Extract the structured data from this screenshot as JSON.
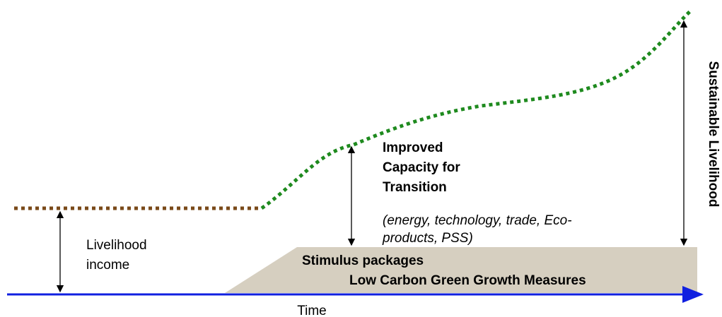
{
  "diagram": {
    "capacity_label": [
      "Improved",
      "Capacity for",
      "Transition"
    ],
    "capacity_note": [
      "(energy, technology, trade, Eco-",
      "products, PSS)"
    ],
    "income_label": [
      "Livelihood",
      "income"
    ],
    "measures": [
      "Stimulus packages",
      "Low Carbon Green Growth Measures"
    ],
    "x_axis_label": "Time",
    "outcome_label": "Sustainable Livelihood"
  }
}
